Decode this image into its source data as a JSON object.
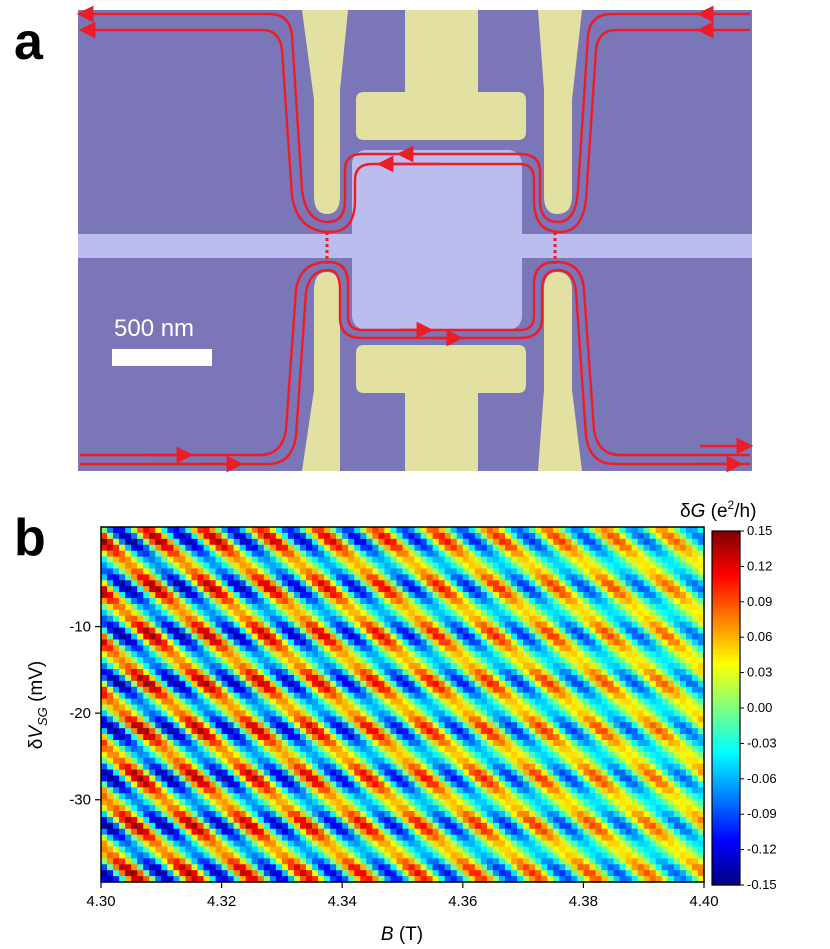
{
  "panel_a": {
    "letter": "a",
    "scale_bar_label": "500 nm",
    "colors": {
      "substrate": "#7a76b7",
      "gate_metal": "#e3e1a2",
      "mesa": "#bcbdef",
      "edge_channel": "#ee1c25"
    }
  },
  "panel_b": {
    "letter": "b",
    "colorbar_title": "δG (e²/h)",
    "xlabel": "B (T)",
    "ylabel": "δV_SG (mV)"
  },
  "chart_data": {
    "type": "heatmap",
    "title": "",
    "xlabel": "B (T)",
    "ylabel": "δV_SG (mV)",
    "x_ticks": [
      "4.30",
      "4.32",
      "4.34",
      "4.36",
      "4.38",
      "4.40"
    ],
    "x_tick_values": [
      4.3,
      4.32,
      4.34,
      4.36,
      4.38,
      4.4
    ],
    "xlim": [
      4.3,
      4.4
    ],
    "y_ticks": [
      "-10",
      "-20",
      "-30"
    ],
    "y_tick_values": [
      -10,
      -20,
      -30
    ],
    "ylim": [
      -39.5,
      1.5
    ],
    "colorbar": {
      "label": "δG (e²/h)",
      "ticks": [
        "0.15",
        "0.12",
        "0.09",
        "0.06",
        "0.03",
        "0.00",
        "-0.03",
        "-0.06",
        "-0.09",
        "-0.12",
        "-0.15"
      ],
      "range": [
        -0.15,
        0.15
      ],
      "colormap": "jet"
    },
    "description_pattern": {
      "stripe_slope_mV_per_T": -620,
      "stripe_period_T": 0.0095,
      "amplitude": 0.15
    }
  }
}
